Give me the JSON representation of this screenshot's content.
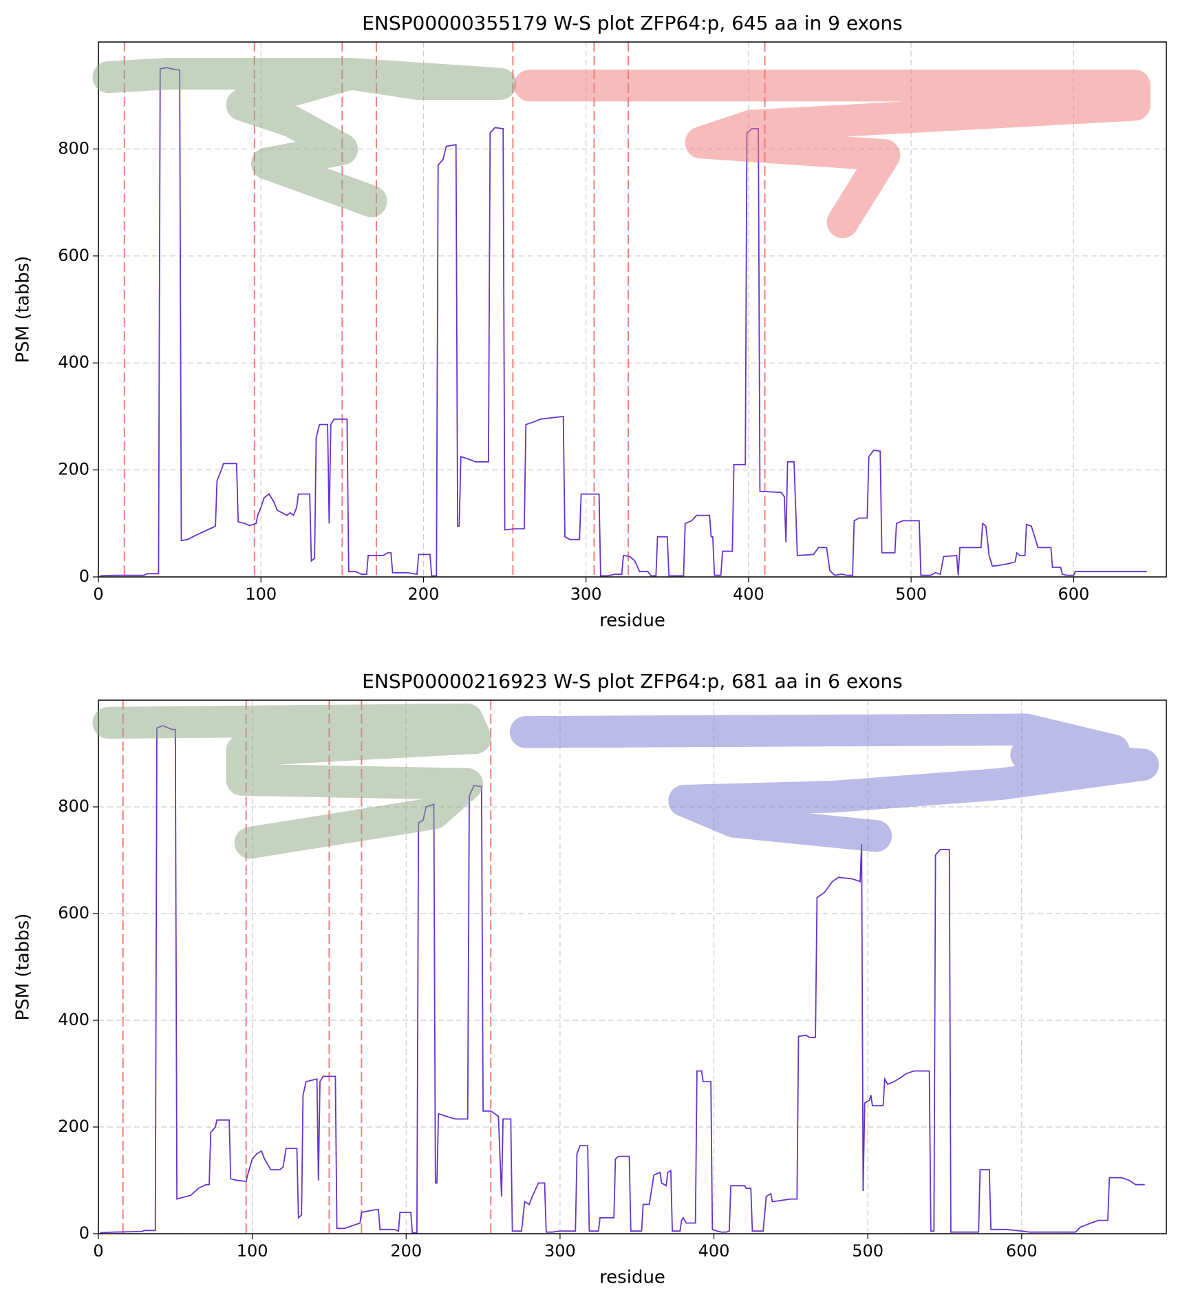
{
  "chart_data": [
    {
      "type": "line",
      "title": "ENSP00000355179 W-S plot ZFP64:p, 645 aa in 9 exons",
      "xlabel": "residue",
      "ylabel": "PSM (tabbs)",
      "xlim": [
        0,
        657
      ],
      "ylim": [
        0,
        1000
      ],
      "xticks": [
        0,
        100,
        200,
        300,
        400,
        500,
        600
      ],
      "yticks": [
        0,
        200,
        400,
        600,
        800
      ],
      "grid": true,
      "color": "#6633cc",
      "exon_boundaries": [
        16,
        96,
        150,
        171,
        255,
        305,
        326,
        410
      ],
      "boundary_color": "#f08080",
      "x": [
        1,
        10,
        28,
        30,
        37,
        38,
        42,
        48,
        50,
        51,
        55,
        60,
        65,
        70,
        72,
        73,
        75,
        77,
        85,
        86,
        90,
        93,
        97,
        98,
        100,
        102,
        105,
        108,
        110,
        113,
        116,
        118,
        120,
        122,
        123,
        130,
        131,
        133,
        134,
        136,
        141,
        142,
        143,
        145,
        153,
        154,
        158,
        162,
        165,
        166,
        175,
        178,
        180,
        181,
        190,
        196,
        197,
        204,
        205,
        208,
        209,
        212,
        214,
        220,
        221,
        222,
        223,
        228,
        232,
        240,
        241,
        244,
        249,
        250,
        256,
        262,
        263,
        268,
        272,
        286,
        287,
        290,
        296,
        297,
        308,
        309,
        313,
        318,
        322,
        323,
        327,
        330,
        333,
        338,
        340,
        343,
        344,
        350,
        351,
        360,
        361,
        365,
        368,
        376,
        377,
        378,
        379,
        383,
        384,
        390,
        391,
        398,
        399,
        402,
        406,
        407,
        420,
        422,
        423,
        424,
        428,
        430,
        440,
        443,
        448,
        450,
        453,
        457,
        461,
        464,
        465,
        468,
        473,
        474,
        477,
        481,
        482,
        490,
        491,
        495,
        505,
        506,
        512,
        515,
        518,
        520,
        528,
        529,
        530,
        543,
        544,
        546,
        548,
        550,
        555,
        560,
        564,
        565,
        567,
        570,
        571,
        574,
        576,
        578,
        586,
        587,
        592,
        593,
        596,
        600,
        601,
        625,
        645
      ],
      "values": [
        2,
        3,
        3,
        6,
        6,
        950,
        952,
        948,
        948,
        68,
        70,
        78,
        85,
        92,
        95,
        180,
        195,
        212,
        212,
        103,
        100,
        96,
        100,
        115,
        130,
        148,
        155,
        140,
        125,
        120,
        115,
        120,
        115,
        130,
        155,
        155,
        30,
        35,
        260,
        285,
        285,
        100,
        285,
        295,
        295,
        10,
        10,
        5,
        5,
        40,
        40,
        45,
        45,
        8,
        8,
        5,
        42,
        42,
        2,
        2,
        770,
        780,
        805,
        808,
        95,
        95,
        225,
        220,
        215,
        215,
        830,
        840,
        838,
        88,
        90,
        90,
        285,
        290,
        295,
        300,
        75,
        70,
        70,
        155,
        155,
        2,
        2,
        5,
        5,
        40,
        38,
        30,
        10,
        10,
        2,
        2,
        75,
        75,
        2,
        2,
        100,
        105,
        115,
        115,
        75,
        75,
        3,
        3,
        48,
        48,
        210,
        210,
        830,
        838,
        838,
        160,
        158,
        150,
        65,
        215,
        215,
        40,
        42,
        55,
        55,
        12,
        3,
        5,
        3,
        3,
        105,
        110,
        110,
        225,
        237,
        235,
        45,
        45,
        100,
        105,
        105,
        3,
        3,
        8,
        5,
        38,
        40,
        3,
        55,
        55,
        100,
        95,
        40,
        20,
        22,
        25,
        28,
        45,
        40,
        40,
        98,
        95,
        75,
        55,
        55,
        18,
        18,
        5,
        3,
        3,
        10,
        10,
        10
      ]
    },
    {
      "type": "line",
      "title": "ENSP00000216923 W-S plot ZFP64:p, 681 aa in 6 exons",
      "xlabel": "residue",
      "ylabel": "PSM (tabbs)",
      "xlim": [
        0,
        694
      ],
      "ylim": [
        0,
        1000
      ],
      "xticks": [
        0,
        100,
        200,
        300,
        400,
        500,
        600
      ],
      "yticks": [
        0,
        200,
        400,
        600,
        800
      ],
      "grid": true,
      "color": "#6633cc",
      "exon_boundaries": [
        16,
        96,
        150,
        171,
        255
      ],
      "boundary_color": "#f08080",
      "x": [
        1,
        10,
        28,
        30,
        37,
        38,
        42,
        48,
        50,
        51,
        60,
        65,
        70,
        72,
        73,
        76,
        77,
        85,
        86,
        90,
        96,
        97,
        100,
        103,
        106,
        108,
        110,
        112,
        118,
        120,
        122,
        129,
        130,
        132,
        133,
        135,
        142,
        143,
        144,
        146,
        154,
        155,
        160,
        170,
        171,
        180,
        182,
        183,
        192,
        195,
        196,
        203,
        204,
        207,
        208,
        211,
        213,
        218,
        219,
        220,
        221,
        226,
        232,
        240,
        241,
        244,
        249,
        250,
        255,
        260,
        262,
        263,
        268,
        269,
        275,
        277,
        280,
        282,
        286,
        290,
        291,
        295,
        300,
        310,
        311,
        313,
        318,
        319,
        325,
        326,
        335,
        336,
        338,
        345,
        346,
        353,
        354,
        358,
        361,
        365,
        366,
        369,
        370,
        372,
        373,
        378,
        379,
        380,
        382,
        388,
        389,
        392,
        393,
        398,
        399,
        402,
        405,
        408,
        410,
        411,
        420,
        421,
        424,
        425,
        432,
        434,
        437,
        438,
        450,
        454,
        455,
        460,
        462,
        466,
        467,
        472,
        477,
        481,
        490,
        495,
        496,
        497,
        498,
        501,
        502,
        503,
        510,
        511,
        513,
        517,
        520,
        525,
        530,
        540,
        541,
        543,
        544,
        547,
        553,
        554,
        556,
        572,
        573,
        579,
        580,
        590,
        600,
        605,
        620,
        635,
        638,
        645,
        650,
        656,
        657,
        665,
        670,
        674,
        680
      ],
      "values": [
        2,
        3,
        4,
        6,
        6,
        948,
        952,
        945,
        945,
        65,
        72,
        85,
        92,
        92,
        190,
        200,
        213,
        213,
        103,
        100,
        98,
        110,
        140,
        150,
        155,
        140,
        130,
        120,
        120,
        125,
        160,
        160,
        30,
        35,
        260,
        285,
        290,
        100,
        285,
        295,
        295,
        10,
        10,
        20,
        40,
        45,
        45,
        8,
        8,
        5,
        40,
        40,
        2,
        2,
        770,
        775,
        800,
        805,
        95,
        95,
        225,
        220,
        215,
        215,
        820,
        840,
        838,
        230,
        230,
        220,
        70,
        215,
        215,
        5,
        5,
        60,
        55,
        70,
        95,
        95,
        3,
        3,
        5,
        5,
        150,
        165,
        165,
        5,
        5,
        30,
        30,
        140,
        145,
        145,
        5,
        5,
        55,
        55,
        110,
        115,
        95,
        90,
        115,
        118,
        5,
        5,
        25,
        30,
        20,
        20,
        305,
        305,
        285,
        285,
        8,
        5,
        3,
        3,
        5,
        90,
        90,
        85,
        85,
        5,
        5,
        70,
        75,
        60,
        65,
        65,
        370,
        372,
        368,
        368,
        630,
        640,
        660,
        668,
        665,
        660,
        730,
        80,
        245,
        250,
        260,
        240,
        240,
        290,
        280,
        285,
        290,
        300,
        305,
        305,
        5,
        5,
        710,
        720,
        720,
        3,
        3,
        3,
        120,
        120,
        8,
        8,
        5,
        3,
        3,
        3,
        12,
        20,
        25,
        25,
        105,
        105,
        100,
        92,
        92
      ]
    }
  ]
}
